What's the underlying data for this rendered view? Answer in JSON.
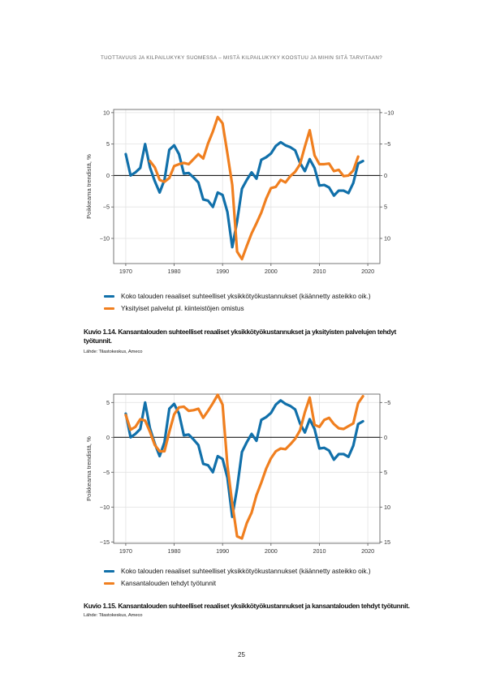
{
  "header": {
    "running_title": "TUOTTAVUUS JA KILPAILUKYKY SUOMESSA – MISTÄ KILPAILUKYKY KOOSTUU JA MIHIN SITÄ TARVITAAN?"
  },
  "figures": [
    {
      "caption": "Kuvio 1.14.  Kansantalouden suhteelliset reaaliset yksikkötyökustannukset ja yksityisten palvelujen tehdyt työtunnit.",
      "source": "Lähde: Tilastokeskus, Ameco",
      "legend": [
        "Koko talouden reaaliset suhteelliset yksikkötyökustannukset (käännetty asteikko oik.)",
        "Yksityiset palvelut pl. kiinteistöjen omistus"
      ]
    },
    {
      "caption": "Kuvio 1.15.  Kansantalouden suhteelliset reaaliset yksikkötyökustannukset  ja kansantalouden tehdyt työtunnit.",
      "source": "Lähde: Tilastokeskus, Ameco",
      "legend": [
        "Koko talouden reaaliset suhteelliset yksikkötyökustannukset (käännetty asteikko oik.)",
        "Kansantalouden tehdyt työtunnit"
      ]
    }
  ],
  "page_number": "25",
  "colors": {
    "blue": "#1170aa",
    "orange": "#f07f1f"
  },
  "chart_data": [
    {
      "type": "line",
      "title": "",
      "ylabel": "Poikkeama trendistä, %",
      "xlabel": "",
      "xlim": [
        1967.5,
        2022.5
      ],
      "ylim": [
        -14,
        10.5
      ],
      "x_ticks": [
        1970,
        1980,
        1990,
        2000,
        2010,
        2020
      ],
      "y_ticks": [
        10,
        5,
        0,
        -5,
        -10
      ],
      "y_tick_labels": [
        "10",
        "5",
        "0",
        "−5",
        "−10"
      ],
      "right_axis": {
        "inverted": true,
        "ticks": [
          -10,
          -5,
          0,
          5,
          10
        ],
        "tick_labels": [
          "−10",
          "−5",
          "0",
          "5",
          "10"
        ]
      },
      "grid": true,
      "zero_line": true,
      "legend_position": "bottom",
      "series": [
        {
          "name": "Koko talouden reaaliset suhteelliset yksikkötyökustannukset (käännetty asteikko oik.)",
          "color": "#1170aa",
          "x": [
            1970,
            1971,
            1972,
            1973,
            1974,
            1975,
            1976,
            1977,
            1978,
            1979,
            1980,
            1981,
            1982,
            1983,
            1984,
            1985,
            1986,
            1987,
            1988,
            1989,
            1990,
            1991,
            1992,
            1993,
            1994,
            1995,
            1996,
            1997,
            1998,
            1999,
            2000,
            2001,
            2002,
            2003,
            2004,
            2005,
            2006,
            2007,
            2008,
            2009,
            2010,
            2011,
            2012,
            2013,
            2014,
            2015,
            2016,
            2017,
            2018,
            2019
          ],
          "y": [
            3.4,
            0.0,
            0.5,
            1.2,
            5.0,
            1.3,
            -0.9,
            -2.7,
            -0.7,
            4.1,
            4.8,
            3.4,
            0.3,
            0.4,
            -0.3,
            -1.1,
            -3.8,
            -4.0,
            -5.0,
            -2.7,
            -3.1,
            -5.8,
            -11.4,
            -7.3,
            -2.1,
            -0.7,
            0.5,
            -0.5,
            2.5,
            2.9,
            3.5,
            4.7,
            5.3,
            4.8,
            4.5,
            4.0,
            2.0,
            0.7,
            2.6,
            1.2,
            -1.6,
            -1.5,
            -1.9,
            -3.2,
            -2.4,
            -2.4,
            -2.8,
            -1.2,
            1.9,
            2.3
          ]
        },
        {
          "name": "Yksityiset palvelut pl. kiinteistöjen omistus",
          "color": "#f07f1f",
          "x": [
            1975,
            1976,
            1977,
            1978,
            1979,
            1980,
            1981,
            1982,
            1983,
            1984,
            1985,
            1986,
            1987,
            1988,
            1989,
            1990,
            1991,
            1992,
            1993,
            1994,
            1995,
            1996,
            1997,
            1998,
            1999,
            2000,
            2001,
            2002,
            2003,
            2004,
            2005,
            2006,
            2007,
            2008,
            2009,
            2010,
            2011,
            2012,
            2013,
            2014,
            2015,
            2016,
            2017,
            2018
          ],
          "y": [
            2.3,
            1.3,
            -0.7,
            -1.0,
            -0.4,
            1.5,
            1.8,
            2.0,
            1.8,
            2.6,
            3.4,
            2.7,
            5.1,
            7.0,
            9.3,
            8.3,
            3.5,
            -1.5,
            -12.1,
            -13.3,
            -11.2,
            -9.2,
            -7.6,
            -5.9,
            -3.7,
            -2.0,
            -1.8,
            -0.7,
            -1.1,
            -0.1,
            0.6,
            1.8,
            4.6,
            7.2,
            3.2,
            1.8,
            1.8,
            1.9,
            0.7,
            0.9,
            -0.1,
            0.0,
            0.8,
            3.0
          ]
        }
      ]
    },
    {
      "type": "line",
      "title": "",
      "ylabel": "Poikkeama trendistä, %",
      "xlabel": "",
      "xlim": [
        1967.5,
        2022.5
      ],
      "ylim": [
        -15.2,
        6.2
      ],
      "x_ticks": [
        1970,
        1980,
        1990,
        2000,
        2010,
        2020
      ],
      "y_ticks": [
        5,
        0,
        -5,
        -10,
        -15
      ],
      "y_tick_labels": [
        "5",
        "0",
        "−5",
        "−10",
        "−15"
      ],
      "right_axis": {
        "inverted": true,
        "ticks": [
          -5,
          0,
          5,
          10,
          15
        ],
        "tick_labels": [
          "−5",
          "0",
          "5",
          "10",
          "15"
        ]
      },
      "grid": true,
      "zero_line": true,
      "legend_position": "bottom",
      "series": [
        {
          "name": "Koko talouden reaaliset suhteelliset yksikkötyökustannukset (käännetty asteikko oik.)",
          "color": "#1170aa",
          "x": [
            1970,
            1971,
            1972,
            1973,
            1974,
            1975,
            1976,
            1977,
            1978,
            1979,
            1980,
            1981,
            1982,
            1983,
            1984,
            1985,
            1986,
            1987,
            1988,
            1989,
            1990,
            1991,
            1992,
            1993,
            1994,
            1995,
            1996,
            1997,
            1998,
            1999,
            2000,
            2001,
            2002,
            2003,
            2004,
            2005,
            2006,
            2007,
            2008,
            2009,
            2010,
            2011,
            2012,
            2013,
            2014,
            2015,
            2016,
            2017,
            2018,
            2019
          ],
          "y": [
            3.4,
            0.0,
            0.5,
            1.2,
            5.0,
            1.3,
            -0.9,
            -2.7,
            -0.7,
            4.1,
            4.8,
            3.4,
            0.3,
            0.4,
            -0.3,
            -1.1,
            -3.8,
            -4.0,
            -5.0,
            -2.7,
            -3.1,
            -5.8,
            -11.4,
            -7.3,
            -2.1,
            -0.7,
            0.5,
            -0.5,
            2.5,
            2.9,
            3.5,
            4.7,
            5.3,
            4.8,
            4.5,
            4.0,
            2.0,
            0.7,
            2.6,
            1.2,
            -1.6,
            -1.5,
            -1.9,
            -3.2,
            -2.4,
            -2.4,
            -2.8,
            -1.2,
            1.9,
            2.3
          ]
        },
        {
          "name": "Kansantalouden tehdyt työtunnit",
          "color": "#f07f1f",
          "x": [
            1970,
            1971,
            1972,
            1973,
            1974,
            1975,
            1976,
            1977,
            1978,
            1979,
            1980,
            1981,
            1982,
            1983,
            1984,
            1985,
            1986,
            1987,
            1988,
            1989,
            1990,
            1991,
            1992,
            1993,
            1994,
            1995,
            1996,
            1997,
            1998,
            1999,
            2000,
            2001,
            2002,
            2003,
            2004,
            2005,
            2006,
            2007,
            2008,
            2009,
            2010,
            2011,
            2012,
            2013,
            2014,
            2015,
            2016,
            2017,
            2018,
            2019
          ],
          "y": [
            3.2,
            1.1,
            1.5,
            2.6,
            2.4,
            0.8,
            -1.1,
            -2.0,
            -2.0,
            0.8,
            3.3,
            4.3,
            4.4,
            3.8,
            3.9,
            4.1,
            2.8,
            3.8,
            4.9,
            6.1,
            4.7,
            -4.0,
            -9.5,
            -14.2,
            -14.5,
            -12.3,
            -10.8,
            -8.3,
            -6.5,
            -4.5,
            -3.0,
            -2.0,
            -1.6,
            -1.7,
            -1.0,
            -0.2,
            1.0,
            3.6,
            5.7,
            1.8,
            1.5,
            2.5,
            2.8,
            1.9,
            1.3,
            1.2,
            1.6,
            2.0,
            4.9,
            5.9
          ]
        }
      ]
    }
  ]
}
